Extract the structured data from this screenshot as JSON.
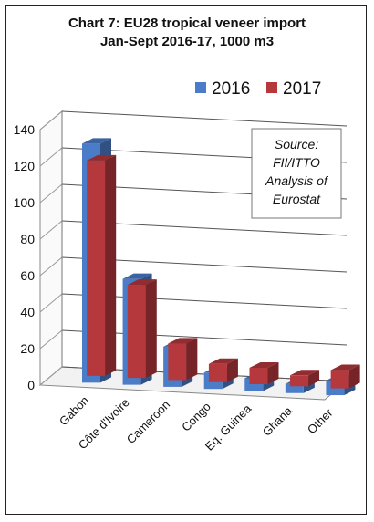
{
  "chart_data": {
    "type": "bar",
    "title_line1": "Chart 7: EU28 tropical veneer import",
    "title_line2": "Jan-Sept 2016-17, 1000 m3",
    "categories": [
      "Gabon",
      "Côte d'Ivoire",
      "Cameroon",
      "Congo",
      "Eq. Guinea",
      "Ghana",
      "Other"
    ],
    "series": [
      {
        "name": "2016",
        "values": [
          131,
          58,
          22,
          9,
          7,
          5,
          8
        ],
        "color": "#4a7cc8"
      },
      {
        "name": "2017",
        "values": [
          118,
          51,
          20,
          10,
          9,
          6,
          10
        ],
        "color": "#b5383c"
      }
    ],
    "ylim": [
      0,
      140
    ],
    "yticks": [
      "0",
      "20",
      "40",
      "60",
      "80",
      "100",
      "120",
      "140"
    ],
    "grid": true,
    "legend": "top-right",
    "annotation": [
      "Source:",
      "FII/ITTO",
      "Analysis of",
      "Eurostat"
    ]
  }
}
